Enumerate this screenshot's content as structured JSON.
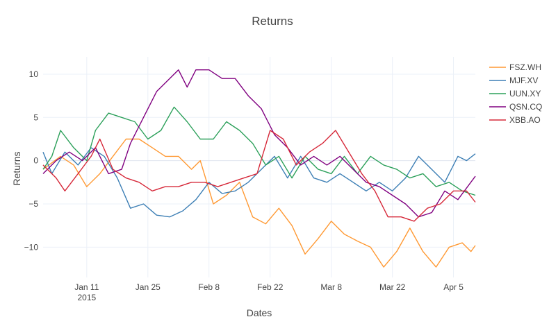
{
  "chart_data": {
    "type": "line",
    "title": "Returns",
    "xlabel": "Dates",
    "ylabel": "Returns",
    "x_range": [
      "2015-01-01",
      "2015-04-10"
    ],
    "ylim": [
      -13.5,
      12
    ],
    "grid": true,
    "legend_position": "right",
    "x_ticks": [
      {
        "date": "2015-01-11",
        "label": "Jan 11",
        "sublabel": "2015"
      },
      {
        "date": "2015-01-25",
        "label": "Jan 25",
        "sublabel": ""
      },
      {
        "date": "2015-02-08",
        "label": "Feb 8",
        "sublabel": ""
      },
      {
        "date": "2015-02-22",
        "label": "Feb 22",
        "sublabel": ""
      },
      {
        "date": "2015-03-08",
        "label": "Mar 8",
        "sublabel": ""
      },
      {
        "date": "2015-03-22",
        "label": "Mar 22",
        "sublabel": ""
      },
      {
        "date": "2015-04-05",
        "label": "Apr 5",
        "sublabel": ""
      }
    ],
    "y_ticks": [
      {
        "value": 10,
        "label": "10"
      },
      {
        "value": 5,
        "label": "5"
      },
      {
        "value": 0,
        "label": "0"
      },
      {
        "value": -5,
        "label": "−5"
      },
      {
        "value": -10,
        "label": "−10"
      }
    ],
    "series": [
      {
        "name": "FSZ.WH",
        "color": "#ff9933",
        "points": [
          [
            "2015-01-01",
            -1.0
          ],
          [
            "2015-01-05",
            0.5
          ],
          [
            "2015-01-08",
            -0.5
          ],
          [
            "2015-01-11",
            -3.0
          ],
          [
            "2015-01-14",
            -1.5
          ],
          [
            "2015-01-17",
            0.5
          ],
          [
            "2015-01-20",
            2.5
          ],
          [
            "2015-01-23",
            2.5
          ],
          [
            "2015-01-26",
            1.5
          ],
          [
            "2015-01-29",
            0.5
          ],
          [
            "2015-02-01",
            0.5
          ],
          [
            "2015-02-04",
            -1.0
          ],
          [
            "2015-02-06",
            0.0
          ],
          [
            "2015-02-09",
            -5.0
          ],
          [
            "2015-02-12",
            -4.0
          ],
          [
            "2015-02-15",
            -2.5
          ],
          [
            "2015-02-18",
            -6.5
          ],
          [
            "2015-02-21",
            -7.3
          ],
          [
            "2015-02-24",
            -5.5
          ],
          [
            "2015-02-27",
            -7.5
          ],
          [
            "2015-03-02",
            -10.8
          ],
          [
            "2015-03-05",
            -9.0
          ],
          [
            "2015-03-08",
            -7.0
          ],
          [
            "2015-03-11",
            -8.5
          ],
          [
            "2015-03-14",
            -9.3
          ],
          [
            "2015-03-17",
            -10.0
          ],
          [
            "2015-03-20",
            -12.3
          ],
          [
            "2015-03-23",
            -10.5
          ],
          [
            "2015-03-26",
            -7.8
          ],
          [
            "2015-03-29",
            -10.5
          ],
          [
            "2015-04-01",
            -12.3
          ],
          [
            "2015-04-04",
            -10.0
          ],
          [
            "2015-04-07",
            -9.5
          ],
          [
            "2015-04-09",
            -10.5
          ],
          [
            "2015-04-10",
            -9.8
          ]
        ]
      },
      {
        "name": "MJF.XV",
        "color": "#3d7fb5",
        "points": [
          [
            "2015-01-01",
            1.0
          ],
          [
            "2015-01-03",
            -1.5
          ],
          [
            "2015-01-06",
            1.0
          ],
          [
            "2015-01-09",
            -0.5
          ],
          [
            "2015-01-12",
            1.5
          ],
          [
            "2015-01-15",
            0.5
          ],
          [
            "2015-01-18",
            -2.0
          ],
          [
            "2015-01-21",
            -5.5
          ],
          [
            "2015-01-24",
            -5.0
          ],
          [
            "2015-01-27",
            -6.3
          ],
          [
            "2015-01-30",
            -6.5
          ],
          [
            "2015-02-02",
            -5.8
          ],
          [
            "2015-02-05",
            -4.5
          ],
          [
            "2015-02-08",
            -2.5
          ],
          [
            "2015-02-11",
            -3.8
          ],
          [
            "2015-02-14",
            -3.5
          ],
          [
            "2015-02-17",
            -2.5
          ],
          [
            "2015-02-20",
            -1.0
          ],
          [
            "2015-02-23",
            0.5
          ],
          [
            "2015-02-26",
            -2.0
          ],
          [
            "2015-03-01",
            0.5
          ],
          [
            "2015-03-04",
            -2.0
          ],
          [
            "2015-03-07",
            -2.5
          ],
          [
            "2015-03-10",
            -1.5
          ],
          [
            "2015-03-13",
            -2.5
          ],
          [
            "2015-03-16",
            -3.5
          ],
          [
            "2015-03-19",
            -2.5
          ],
          [
            "2015-03-22",
            -3.5
          ],
          [
            "2015-03-25",
            -2.0
          ],
          [
            "2015-03-28",
            0.5
          ],
          [
            "2015-03-31",
            -1.0
          ],
          [
            "2015-04-03",
            -2.5
          ],
          [
            "2015-04-06",
            0.5
          ],
          [
            "2015-04-08",
            0.0
          ],
          [
            "2015-04-10",
            0.8
          ]
        ]
      },
      {
        "name": "UUN.XY",
        "color": "#2ca05a",
        "points": [
          [
            "2015-01-01",
            -1.0
          ],
          [
            "2015-01-03",
            0.5
          ],
          [
            "2015-01-05",
            3.5
          ],
          [
            "2015-01-08",
            1.5
          ],
          [
            "2015-01-11",
            0.0
          ],
          [
            "2015-01-13",
            3.5
          ],
          [
            "2015-01-16",
            5.5
          ],
          [
            "2015-01-19",
            5.0
          ],
          [
            "2015-01-22",
            4.5
          ],
          [
            "2015-01-25",
            2.5
          ],
          [
            "2015-01-28",
            3.5
          ],
          [
            "2015-01-31",
            6.2
          ],
          [
            "2015-02-03",
            4.5
          ],
          [
            "2015-02-06",
            2.5
          ],
          [
            "2015-02-09",
            2.5
          ],
          [
            "2015-02-12",
            4.5
          ],
          [
            "2015-02-15",
            3.5
          ],
          [
            "2015-02-18",
            2.0
          ],
          [
            "2015-02-21",
            -0.5
          ],
          [
            "2015-02-24",
            0.5
          ],
          [
            "2015-02-27",
            -2.0
          ],
          [
            "2015-03-02",
            0.5
          ],
          [
            "2015-03-05",
            -1.0
          ],
          [
            "2015-03-08",
            -1.5
          ],
          [
            "2015-03-11",
            0.5
          ],
          [
            "2015-03-14",
            -1.5
          ],
          [
            "2015-03-17",
            0.5
          ],
          [
            "2015-03-20",
            -0.5
          ],
          [
            "2015-03-23",
            -1.0
          ],
          [
            "2015-03-26",
            -2.0
          ],
          [
            "2015-03-29",
            -1.5
          ],
          [
            "2015-04-01",
            -3.0
          ],
          [
            "2015-04-04",
            -2.5
          ],
          [
            "2015-04-07",
            -3.5
          ],
          [
            "2015-04-10",
            -4.0
          ]
        ]
      },
      {
        "name": "QSN.CQ",
        "color": "#800080",
        "points": [
          [
            "2015-01-01",
            -1.5
          ],
          [
            "2015-01-04",
            0.0
          ],
          [
            "2015-01-07",
            1.0
          ],
          [
            "2015-01-10",
            0.0
          ],
          [
            "2015-01-13",
            1.5
          ],
          [
            "2015-01-16",
            -1.5
          ],
          [
            "2015-01-19",
            -1.0
          ],
          [
            "2015-01-21",
            2.0
          ],
          [
            "2015-01-24",
            5.0
          ],
          [
            "2015-01-27",
            8.0
          ],
          [
            "2015-01-30",
            9.5
          ],
          [
            "2015-02-01",
            10.5
          ],
          [
            "2015-02-03",
            8.5
          ],
          [
            "2015-02-05",
            10.5
          ],
          [
            "2015-02-08",
            10.5
          ],
          [
            "2015-02-11",
            9.5
          ],
          [
            "2015-02-14",
            9.5
          ],
          [
            "2015-02-17",
            7.5
          ],
          [
            "2015-02-20",
            6.0
          ],
          [
            "2015-02-23",
            3.0
          ],
          [
            "2015-02-26",
            1.5
          ],
          [
            "2015-03-01",
            -0.5
          ],
          [
            "2015-03-04",
            0.5
          ],
          [
            "2015-03-07",
            -0.5
          ],
          [
            "2015-03-10",
            0.5
          ],
          [
            "2015-03-13",
            -1.0
          ],
          [
            "2015-03-16",
            -2.5
          ],
          [
            "2015-03-19",
            -3.0
          ],
          [
            "2015-03-22",
            -4.0
          ],
          [
            "2015-03-25",
            -5.0
          ],
          [
            "2015-03-28",
            -6.5
          ],
          [
            "2015-03-31",
            -6.0
          ],
          [
            "2015-04-03",
            -3.5
          ],
          [
            "2015-04-06",
            -4.5
          ],
          [
            "2015-04-10",
            -1.8
          ]
        ]
      },
      {
        "name": "XBB.AO",
        "color": "#d62839",
        "points": [
          [
            "2015-01-01",
            -0.5
          ],
          [
            "2015-01-04",
            -2.0
          ],
          [
            "2015-01-06",
            -3.5
          ],
          [
            "2015-01-09",
            -1.5
          ],
          [
            "2015-01-12",
            0.5
          ],
          [
            "2015-01-14",
            2.5
          ],
          [
            "2015-01-17",
            -1.0
          ],
          [
            "2015-01-20",
            -2.0
          ],
          [
            "2015-01-23",
            -2.5
          ],
          [
            "2015-01-26",
            -3.5
          ],
          [
            "2015-01-29",
            -3.0
          ],
          [
            "2015-02-01",
            -3.0
          ],
          [
            "2015-02-04",
            -2.5
          ],
          [
            "2015-02-07",
            -2.5
          ],
          [
            "2015-02-10",
            -3.0
          ],
          [
            "2015-02-13",
            -2.5
          ],
          [
            "2015-02-16",
            -2.0
          ],
          [
            "2015-02-19",
            -1.5
          ],
          [
            "2015-02-22",
            3.5
          ],
          [
            "2015-02-25",
            2.5
          ],
          [
            "2015-02-28",
            -0.5
          ],
          [
            "2015-03-03",
            1.0
          ],
          [
            "2015-03-06",
            2.0
          ],
          [
            "2015-03-09",
            3.5
          ],
          [
            "2015-03-12",
            1.0
          ],
          [
            "2015-03-15",
            -1.5
          ],
          [
            "2015-03-18",
            -3.5
          ],
          [
            "2015-03-21",
            -6.5
          ],
          [
            "2015-03-24",
            -6.5
          ],
          [
            "2015-03-27",
            -7.0
          ],
          [
            "2015-03-30",
            -5.5
          ],
          [
            "2015-04-02",
            -5.0
          ],
          [
            "2015-04-05",
            -3.5
          ],
          [
            "2015-04-08",
            -3.5
          ],
          [
            "2015-04-10",
            -4.8
          ]
        ]
      }
    ]
  }
}
